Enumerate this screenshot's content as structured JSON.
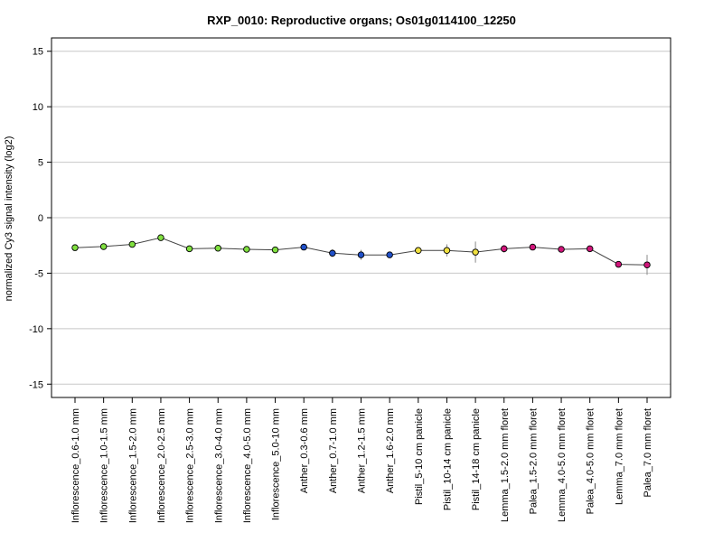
{
  "chart_data": {
    "type": "line",
    "title": "RXP_0010: Reproductive organs; Os01g0114100_12250",
    "xlabel": "",
    "ylabel": "normalized Cy3 signal intensity (log2)",
    "ylim": [
      -16.2,
      16.2
    ],
    "yticks": [
      15,
      10,
      5,
      0,
      -5,
      -10,
      -15
    ],
    "grid": true,
    "legend": "none",
    "categories": [
      "Inflorescence_0.6-1.0 mm",
      "Inflorescence_1.0-1.5 mm",
      "Inflorescence_1.5-2.0 mm",
      "Inflorescence_2.0-2.5 mm",
      "Inflorescence_2.5-3.0 mm",
      "Inflorescence_3.0-4.0 mm",
      "Inflorescence_4.0-5.0 mm",
      "Inflorescence_5.0-10 mm",
      "Anther_0.3-0.6 mm",
      "Anther_0.7-1.0 mm",
      "Anther_1.2-1.5 mm",
      "Anther_1.6-2.0 mm",
      "Pistil_5-10 cm panicle",
      "Pistil_10-14 cm panicle",
      "Pistil_14-18 cm panicle",
      "Lemma_1.5-2.0 mm floret",
      "Palea_1.5-2.0 mm floret",
      "Lemma_4.0-5.0 mm floret",
      "Palea_4.0-5.0 mm floret",
      "Lemma_7.0 mm floret",
      "Palea_7.0 mm floret"
    ],
    "values": [
      -2.7,
      -2.6,
      -2.4,
      -1.8,
      -2.8,
      -2.75,
      -2.85,
      -2.9,
      -2.65,
      -3.2,
      -3.35,
      -3.35,
      -2.95,
      -2.95,
      -3.1,
      -2.8,
      -2.65,
      -2.85,
      -2.8,
      -4.2,
      -4.25
    ],
    "errors": [
      0.1,
      0.1,
      0.15,
      0.1,
      0.1,
      0.1,
      0.1,
      0.1,
      0.1,
      0.35,
      0.45,
      0.1,
      0.3,
      0.55,
      0.95,
      0.35,
      0.15,
      0.1,
      0.1,
      0.25,
      0.9
    ],
    "point_colors": [
      "#80e040",
      "#80e040",
      "#80e040",
      "#80e040",
      "#80e040",
      "#80e040",
      "#80e040",
      "#80e040",
      "#2050c8",
      "#2050c8",
      "#2050c8",
      "#2050c8",
      "#f0e040",
      "#f0e040",
      "#f0e040",
      "#d0157a",
      "#d0157a",
      "#d0157a",
      "#d0157a",
      "#d0157a",
      "#d0157a"
    ],
    "line_color": "#444444",
    "grid_color": "#c8c8c8"
  }
}
